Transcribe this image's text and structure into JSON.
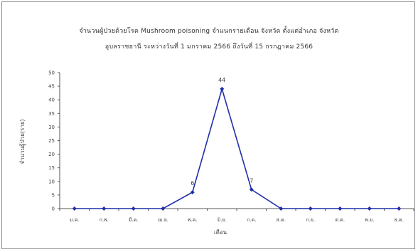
{
  "chart_data": {
    "type": "line",
    "title": "จำนวนผู้ป่วยด้วยโรค Mushroom poisoning จำแนกรายเดือน จังหวัด ตั้งแต่อำเภอ จังหวัด",
    "subtitle": "อุบลราชธานี ระหว่างวันที่ 1 มกราคม 2566 ถึงวันที่ 15 กรกฎาคม 2566",
    "xlabel": "เดือน",
    "ylabel": "จำนวนผู้ป่วย(ราย)",
    "categories": [
      "ม.ค.",
      "ก.พ.",
      "มี.ค.",
      "เม.ย.",
      "พ.ค.",
      "มิ.ย.",
      "ก.ค.",
      "ส.ค.",
      "ก.ย.",
      "ต.ค.",
      "พ.ย.",
      "ธ.ค."
    ],
    "values": [
      0,
      0,
      0,
      0,
      6,
      44,
      7,
      0,
      0,
      0,
      0,
      0
    ],
    "data_labels": [
      "",
      "",
      "",
      "",
      "6",
      "44",
      "7",
      "",
      "",
      "",
      "",
      ""
    ],
    "ylim": [
      0,
      50
    ],
    "yticks": [
      0,
      5,
      10,
      15,
      20,
      25,
      30,
      35,
      40,
      45,
      50
    ],
    "grid": false,
    "line_color": "#1f2fa8"
  }
}
